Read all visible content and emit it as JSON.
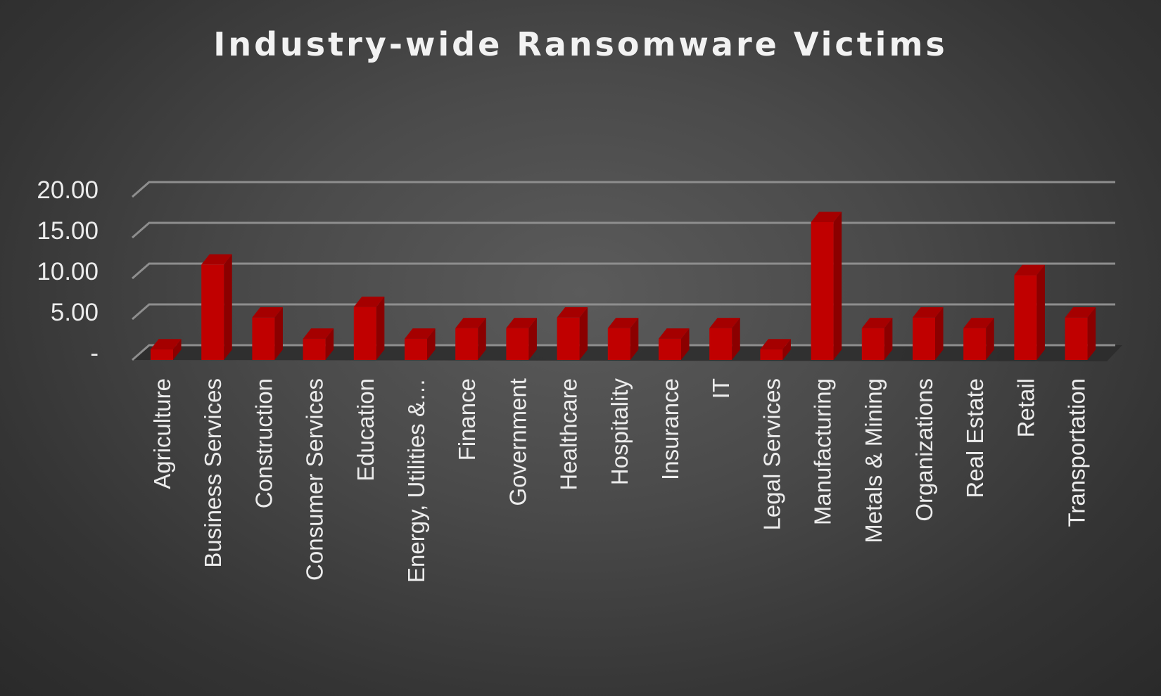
{
  "chart_data": {
    "type": "bar",
    "title": "Industry-wide Ransomware Victims",
    "xlabel": "",
    "ylabel": "",
    "categories": [
      "Agriculture",
      "Business Services",
      "Construction",
      "Consumer Services",
      "Education",
      "Energy, Utilities &…",
      "Finance",
      "Government",
      "Healthcare",
      "Hospitality",
      "Insurance",
      "IT",
      "Legal Services",
      "Manufacturing",
      "Metals & Mining",
      "Organizations",
      "Real Estate",
      "Retail",
      "Transportation"
    ],
    "values": [
      1.3,
      11.7,
      5.2,
      2.6,
      6.5,
      2.6,
      3.9,
      3.9,
      5.2,
      3.9,
      2.6,
      3.9,
      1.3,
      16.9,
      3.9,
      5.2,
      3.9,
      10.4,
      5.2
    ],
    "ylim": [
      0,
      20
    ],
    "y_ticks": [
      0,
      5,
      10,
      15,
      20
    ],
    "y_tick_labels": [
      "-",
      "5.00",
      "10.00",
      "15.00",
      "20.00"
    ],
    "grid": true,
    "legend": "none",
    "style": "3d-column",
    "colors": {
      "bar_front": "#c00000",
      "bar_side": "#8b0000",
      "bar_top": "#a50000",
      "gridline": "#8e8e8e",
      "floor": "#2b2b2b"
    }
  }
}
